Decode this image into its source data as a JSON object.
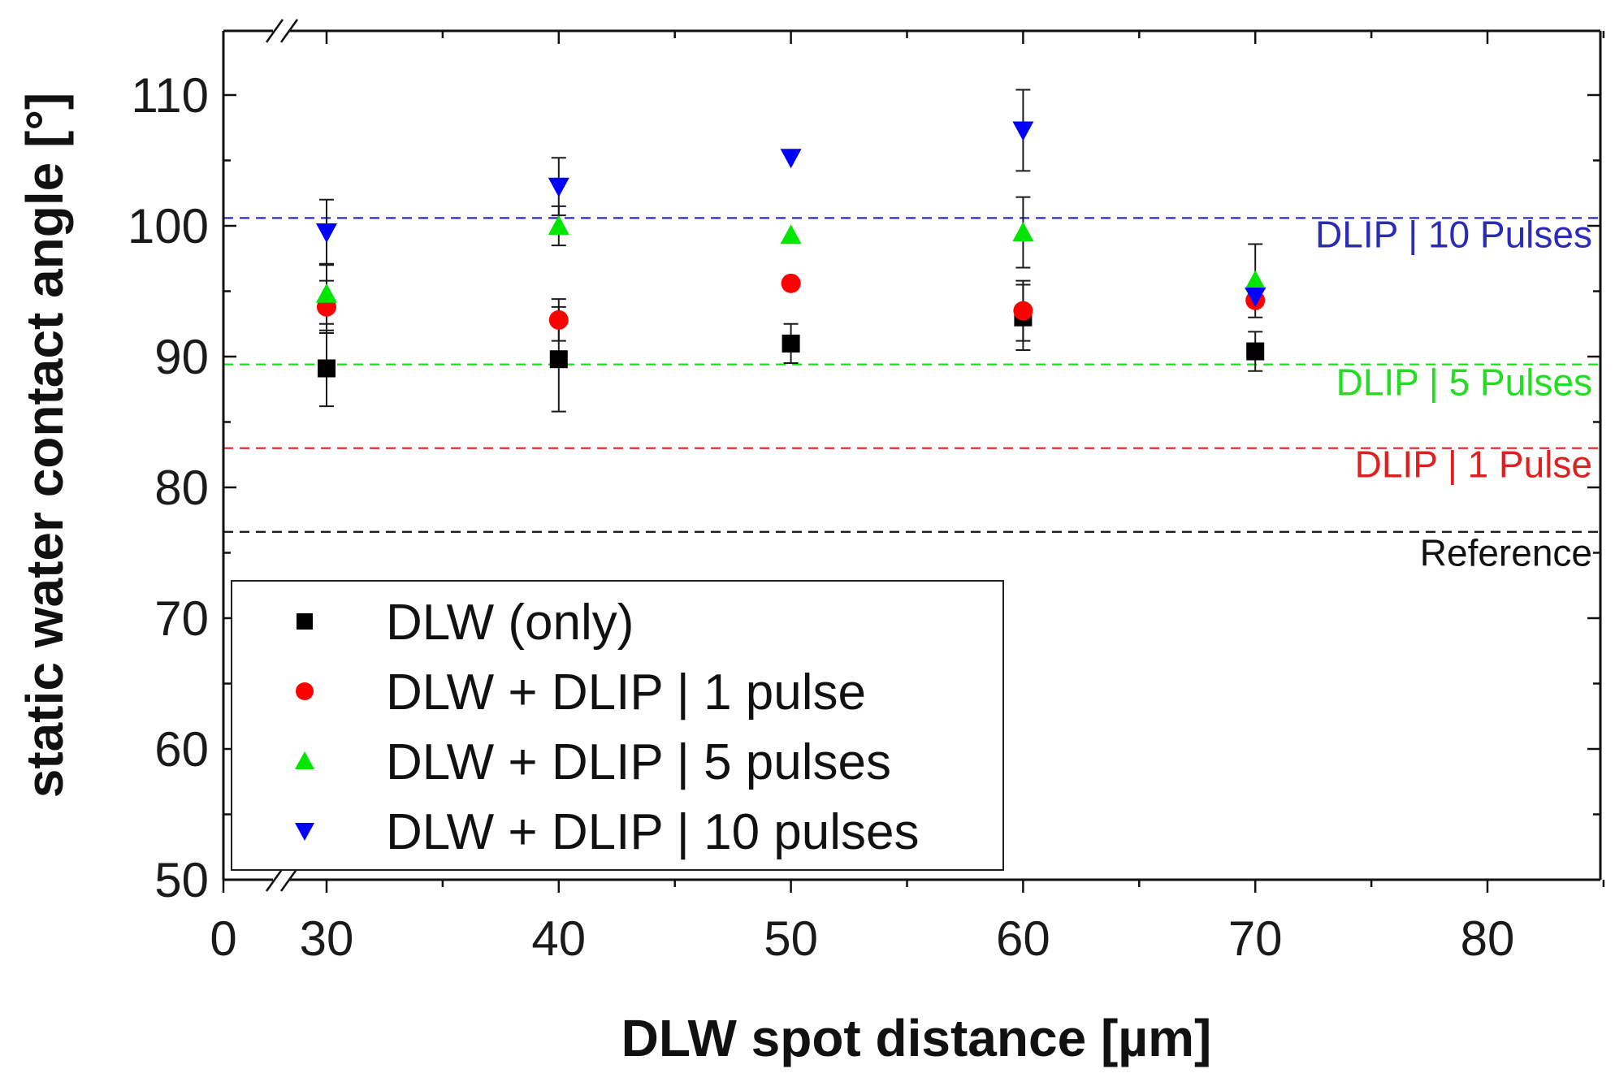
{
  "chart_data": {
    "type": "scatter",
    "xlabel": "DLW spot distance [µm]",
    "ylabel": "static water contact angle [°]",
    "xlim": [
      0,
      85
    ],
    "ylim": [
      50,
      115
    ],
    "x_axis_break": true,
    "y_axis_break": true,
    "x_ticks": [
      0,
      30,
      40,
      50,
      60,
      70,
      80
    ],
    "x_tick_labels": [
      "0",
      "30",
      "40",
      "50",
      "60",
      "70",
      "80"
    ],
    "y_ticks": [
      50,
      60,
      70,
      80,
      90,
      100,
      110
    ],
    "y_tick_labels": [
      "50",
      "60",
      "70",
      "80",
      "90",
      "100",
      "110"
    ],
    "grid": false,
    "legend_position": "bottom-left",
    "series": [
      {
        "name": "DLW (only)",
        "color": "#000000",
        "marker": "square",
        "x": [
          30,
          40,
          50,
          60,
          70
        ],
        "y": [
          89.1,
          89.8,
          91.0,
          93.0,
          90.4
        ],
        "error": [
          2.9,
          4.0,
          1.5,
          2.5,
          1.5
        ]
      },
      {
        "name": "DLW + DLIP | 1 pulse",
        "color": "#ff0000",
        "marker": "circle",
        "x": [
          30,
          40,
          50,
          60,
          70
        ],
        "y": [
          93.8,
          92.8,
          95.6,
          93.5,
          94.3
        ],
        "error": [
          2.0,
          1.6,
          0,
          2.3,
          0
        ]
      },
      {
        "name": "DLW + DLIP | 5 pulses",
        "color": "#00e600",
        "marker": "triangle-up",
        "x": [
          30,
          40,
          50,
          60,
          70
        ],
        "y": [
          94.8,
          100.0,
          99.3,
          99.5,
          95.8
        ],
        "error": [
          2.3,
          1.5,
          0,
          2.7,
          2.8
        ]
      },
      {
        "name": "DLW + DLIP | 10 pulses",
        "color": "#0000ff",
        "marker": "triangle-down",
        "x": [
          30,
          40,
          50,
          60,
          70
        ],
        "y": [
          99.5,
          103.0,
          105.2,
          107.3,
          94.6
        ],
        "error": [
          2.5,
          2.2,
          0,
          3.1,
          0
        ]
      }
    ],
    "reference_lines": [
      {
        "label": "DLIP | 10 Pulses",
        "y": 100.6,
        "color": "#2b2bb8"
      },
      {
        "label": "DLIP | 5 Pulses",
        "y": 89.4,
        "color": "#22dd22"
      },
      {
        "label": "DLIP | 1 Pulse",
        "y": 83.0,
        "color": "#e02020"
      },
      {
        "label": "Reference",
        "y": 76.6,
        "color": "#111111"
      }
    ]
  }
}
